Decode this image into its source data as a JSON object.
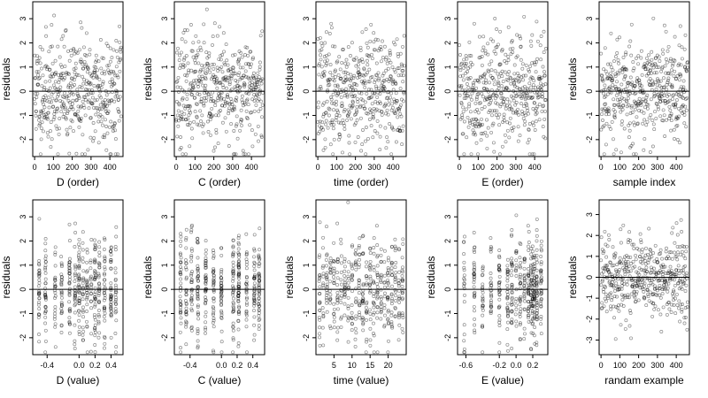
{
  "chart_data": [
    {
      "type": "scatter",
      "xlabel": "D (order)",
      "ylabel": "residuals",
      "xlim": [
        -10,
        470
      ],
      "ylim": [
        -2.7,
        3.7
      ],
      "xticks": [
        0,
        100,
        200,
        300,
        400
      ],
      "xtick_labels": [
        "0",
        "100",
        "200",
        "300",
        "400"
      ],
      "yticks": [
        -2,
        -1,
        0,
        1,
        2,
        3
      ],
      "ytick_labels": [
        "-2",
        "-1",
        "0",
        "1",
        "2",
        "3"
      ],
      "hline": 0,
      "points": {
        "n": 460,
        "x_range": [
          0,
          460
        ],
        "pattern": "index",
        "seed": 11,
        "center_y": 0,
        "spread": 1.15
      }
    },
    {
      "type": "scatter",
      "xlabel": "C (order)",
      "ylabel": "residuals",
      "xlim": [
        -10,
        470
      ],
      "ylim": [
        -2.7,
        3.7
      ],
      "xticks": [
        0,
        100,
        200,
        300,
        400
      ],
      "xtick_labels": [
        "0",
        "100",
        "200",
        "300",
        "400"
      ],
      "yticks": [
        -2,
        -1,
        0,
        1,
        2,
        3
      ],
      "ytick_labels": [
        "-2",
        "-1",
        "0",
        "1",
        "2",
        "3"
      ],
      "hline": 0,
      "points": {
        "n": 460,
        "x_range": [
          0,
          460
        ],
        "pattern": "index",
        "seed": 23,
        "center_y": 0,
        "spread": 1.1
      }
    },
    {
      "type": "scatter",
      "xlabel": "time (order)",
      "ylabel": "residuals",
      "xlim": [
        -10,
        470
      ],
      "ylim": [
        -2.7,
        3.7
      ],
      "xticks": [
        0,
        100,
        200,
        300,
        400
      ],
      "xtick_labels": [
        "0",
        "100",
        "200",
        "300",
        "400"
      ],
      "yticks": [
        -2,
        -1,
        0,
        1,
        2,
        3
      ],
      "ytick_labels": [
        "-2",
        "-1",
        "0",
        "1",
        "2",
        "3"
      ],
      "hline": 0,
      "points": {
        "n": 460,
        "x_range": [
          0,
          460
        ],
        "pattern": "index",
        "seed": 37,
        "center_y": 0,
        "spread": 1.15
      }
    },
    {
      "type": "scatter",
      "xlabel": "E (order)",
      "ylabel": "residuals",
      "xlim": [
        -10,
        470
      ],
      "ylim": [
        -2.7,
        3.7
      ],
      "xticks": [
        0,
        100,
        200,
        300,
        400
      ],
      "xtick_labels": [
        "0",
        "100",
        "200",
        "300",
        "400"
      ],
      "yticks": [
        -2,
        -1,
        0,
        1,
        2,
        3
      ],
      "ytick_labels": [
        "-2",
        "-1",
        "0",
        "1",
        "2",
        "3"
      ],
      "hline": 0,
      "points": {
        "n": 460,
        "x_range": [
          0,
          460
        ],
        "pattern": "index",
        "seed": 41,
        "center_y": 0,
        "spread": 1.15
      }
    },
    {
      "type": "scatter",
      "xlabel": "sample index",
      "ylabel": "residuals",
      "xlim": [
        -10,
        470
      ],
      "ylim": [
        -2.7,
        3.7
      ],
      "xticks": [
        0,
        100,
        200,
        300,
        400
      ],
      "xtick_labels": [
        "0",
        "100",
        "200",
        "300",
        "400"
      ],
      "yticks": [
        -2,
        -1,
        0,
        1,
        2,
        3
      ],
      "ytick_labels": [
        "-2",
        "-1",
        "0",
        "1",
        "2",
        "3"
      ],
      "hline": 0,
      "points": {
        "n": 460,
        "x_range": [
          0,
          460
        ],
        "pattern": "index",
        "seed": 53,
        "center_y": 0,
        "spread": 1.1
      }
    },
    {
      "type": "scatter",
      "xlabel": "D (value)",
      "ylabel": "residuals",
      "xlim": [
        -0.58,
        0.55
      ],
      "ylim": [
        -2.7,
        3.7
      ],
      "xticks": [
        -0.4,
        0,
        0.2,
        0.4
      ],
      "xtick_labels": [
        "-0.4",
        "0.0",
        "0.2",
        "0.4"
      ],
      "yticks": [
        -2,
        -1,
        0,
        1,
        2,
        3
      ],
      "ytick_labels": [
        "-2",
        "-1",
        "0",
        "1",
        "2",
        "3"
      ],
      "hline": 0,
      "points": {
        "n": 460,
        "x_range": [
          -0.52,
          0.48
        ],
        "pattern": "columns",
        "columns": [
          -0.5,
          -0.42,
          -0.3,
          -0.22,
          -0.12,
          -0.05,
          0,
          0.05,
          0.1,
          0.15,
          0.2,
          0.25,
          0.32,
          0.4,
          0.46
        ],
        "seed": 61,
        "center_y": 0,
        "spread": 1.1
      }
    },
    {
      "type": "scatter",
      "xlabel": "C (value)",
      "ylabel": "residuals",
      "xlim": [
        -0.6,
        0.55
      ],
      "ylim": [
        -2.7,
        3.7
      ],
      "xticks": [
        -0.4,
        0,
        0.2,
        0.4
      ],
      "xtick_labels": [
        "-0.4",
        "0.0",
        "0.2",
        "0.4"
      ],
      "yticks": [
        -2,
        -1,
        0,
        1,
        2,
        3
      ],
      "ytick_labels": [
        "-2",
        "-1",
        "0",
        "1",
        "2",
        "3"
      ],
      "hline": 0,
      "points": {
        "n": 460,
        "x_range": [
          -0.52,
          0.5
        ],
        "pattern": "columns",
        "columns": [
          -0.52,
          -0.45,
          -0.38,
          -0.3,
          -0.2,
          -0.1,
          0.0,
          0.15,
          0.22,
          0.32,
          0.42,
          0.48
        ],
        "seed": 71,
        "center_y": 0,
        "spread": 1.1
      }
    },
    {
      "type": "scatter",
      "xlabel": "time (value)",
      "ylabel": "residuals",
      "xlim": [
        0,
        25
      ],
      "ylim": [
        -2.7,
        3.7
      ],
      "xticks": [
        5,
        10,
        15,
        20
      ],
      "xtick_labels": [
        "5",
        "10",
        "15",
        "20"
      ],
      "yticks": [
        -2,
        -1,
        0,
        1,
        2,
        3
      ],
      "ytick_labels": [
        "-2",
        "-1",
        "0",
        "1",
        "2",
        "3"
      ],
      "hline": 0,
      "points": {
        "n": 460,
        "x_range": [
          1,
          24
        ],
        "pattern": "columns",
        "columns": [
          1,
          2,
          3,
          4,
          5,
          6,
          7,
          8,
          9,
          10,
          11,
          12,
          13,
          14,
          15,
          16,
          17,
          18,
          19,
          20,
          21,
          22,
          23,
          24
        ],
        "seed": 83,
        "center_y": 0,
        "spread": 1.1
      }
    },
    {
      "type": "scatter",
      "xlabel": "E (value)",
      "ylabel": "residuals",
      "xlim": [
        -0.7,
        0.38
      ],
      "ylim": [
        -2.7,
        3.7
      ],
      "xticks": [
        -0.6,
        -0.2,
        0,
        0.2
      ],
      "xtick_labels": [
        "-0.6",
        "-0.2",
        "0.0",
        "0.2"
      ],
      "yticks": [
        -2,
        -1,
        0,
        1,
        2,
        3
      ],
      "ytick_labels": [
        "-2",
        "-1",
        "0",
        "1",
        "2",
        "3"
      ],
      "hline": 0,
      "points": {
        "n": 460,
        "x_range": [
          -0.65,
          0.33
        ],
        "pattern": "columns",
        "columns": [
          -0.62,
          -0.5,
          -0.4,
          -0.3,
          -0.2,
          -0.1,
          -0.05,
          0.0,
          0.05,
          0.1,
          0.15,
          0.18,
          0.2,
          0.22,
          0.25,
          0.3
        ],
        "seed": 97,
        "center_y": 0,
        "spread": 1.1
      }
    },
    {
      "type": "scatter",
      "xlabel": "randam example",
      "ylabel": "residuals",
      "xlim": [
        -10,
        470
      ],
      "ylim": [
        -3.7,
        3.7
      ],
      "xticks": [
        0,
        100,
        200,
        300,
        400
      ],
      "xtick_labels": [
        "0",
        "100",
        "200",
        "300",
        "400"
      ],
      "yticks": [
        -3,
        -2,
        -1,
        0,
        1,
        2,
        3
      ],
      "ytick_labels": [
        "-3",
        "-2",
        "-1",
        "0",
        "1",
        "2",
        "3"
      ],
      "hline": 0,
      "points": {
        "n": 460,
        "x_range": [
          0,
          460
        ],
        "pattern": "index",
        "seed": 109,
        "center_y": 0,
        "spread": 1.0
      }
    }
  ],
  "style": {
    "point_color": "#000000",
    "axis_color": "#000000",
    "background": "#ffffff"
  }
}
